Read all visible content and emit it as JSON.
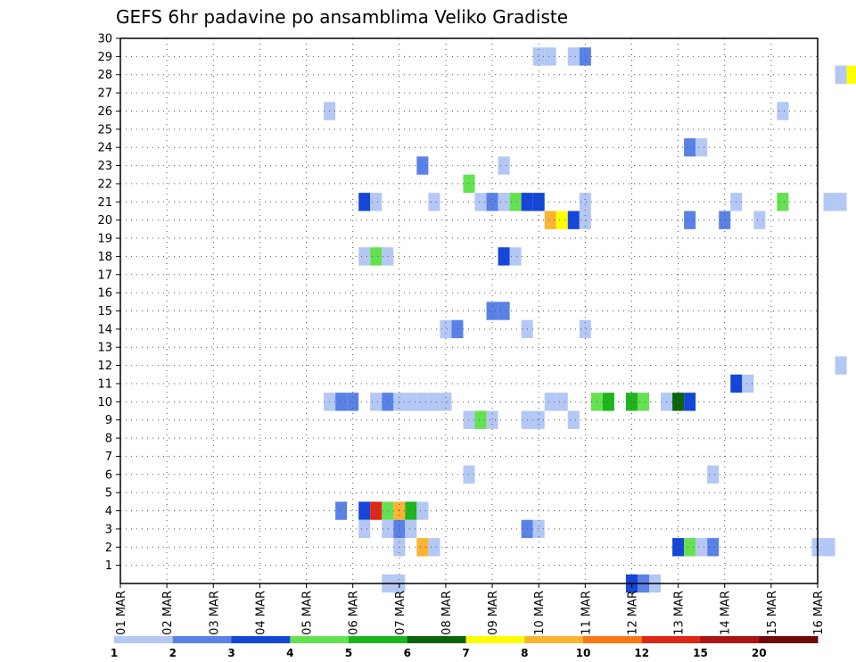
{
  "chart_data": {
    "type": "heatmap",
    "title": "GEFS 6hr padavine po ansamblima Veliko Gradiste",
    "xlabel": "",
    "ylabel": "",
    "x_tick_labels": [
      "01 MAR",
      "02 MAR",
      "03 MAR",
      "04 MAR",
      "05 MAR",
      "06 MAR",
      "07 MAR",
      "08 MAR",
      "09 MAR",
      "10 MAR",
      "11 MAR",
      "12 MAR",
      "13 MAR",
      "14 MAR",
      "15 MAR",
      "16 MAR"
    ],
    "x_range_days": [
      1,
      16
    ],
    "y_tick_labels": [
      "1",
      "2",
      "3",
      "4",
      "5",
      "6",
      "7",
      "8",
      "9",
      "10",
      "11",
      "12",
      "13",
      "14",
      "15",
      "16",
      "17",
      "18",
      "19",
      "20",
      "21",
      "22",
      "23",
      "24",
      "25",
      "26",
      "27",
      "28",
      "29",
      "30"
    ],
    "y_range": [
      0,
      30
    ],
    "grid": true,
    "colorbar": {
      "labels": [
        "1",
        "2",
        "3",
        "4",
        "5",
        "6",
        "7",
        "8",
        "10",
        "12",
        "15",
        "20"
      ],
      "colors": [
        "#b4c8f5",
        "#5a82e6",
        "#1446d7",
        "#64e150",
        "#1eb41e",
        "#0a640a",
        "#ffff00",
        "#fab432",
        "#fa7814",
        "#dc2814",
        "#aa1414",
        "#6e0a0a"
      ]
    },
    "cells": [
      {
        "day": 10.0,
        "member": 29,
        "level": 1
      },
      {
        "day": 10.25,
        "member": 29,
        "level": 1
      },
      {
        "day": 10.75,
        "member": 29,
        "level": 1
      },
      {
        "day": 11.0,
        "member": 29,
        "level": 2
      },
      {
        "day": 16.5,
        "member": 28,
        "level": 1
      },
      {
        "day": 16.75,
        "member": 28,
        "level": 7
      },
      {
        "day": 5.5,
        "member": 26,
        "level": 1
      },
      {
        "day": 15.25,
        "member": 26,
        "level": 1
      },
      {
        "day": 7.5,
        "member": 23,
        "level": 2
      },
      {
        "day": 9.25,
        "member": 23,
        "level": 1
      },
      {
        "day": 13.25,
        "member": 24,
        "level": 2
      },
      {
        "day": 13.5,
        "member": 24,
        "level": 1
      },
      {
        "day": 8.5,
        "member": 22,
        "level": 4
      },
      {
        "day": 6.25,
        "member": 21,
        "level": 3
      },
      {
        "day": 6.5,
        "member": 21,
        "level": 1
      },
      {
        "day": 7.75,
        "member": 21,
        "level": 1
      },
      {
        "day": 8.75,
        "member": 21,
        "level": 1
      },
      {
        "day": 9.0,
        "member": 21,
        "level": 2
      },
      {
        "day": 9.25,
        "member": 21,
        "level": 1
      },
      {
        "day": 9.5,
        "member": 21,
        "level": 4
      },
      {
        "day": 9.75,
        "member": 21,
        "level": 3
      },
      {
        "day": 10.0,
        "member": 21,
        "level": 3
      },
      {
        "day": 11.0,
        "member": 21,
        "level": 1
      },
      {
        "day": 14.25,
        "member": 21,
        "level": 1
      },
      {
        "day": 15.25,
        "member": 21,
        "level": 4
      },
      {
        "day": 16.25,
        "member": 21,
        "level": 1
      },
      {
        "day": 16.5,
        "member": 21,
        "level": 1
      },
      {
        "day": 10.25,
        "member": 20,
        "level": 8
      },
      {
        "day": 10.5,
        "member": 20,
        "level": 7
      },
      {
        "day": 10.75,
        "member": 20,
        "level": 3
      },
      {
        "day": 11.0,
        "member": 20,
        "level": 1
      },
      {
        "day": 13.25,
        "member": 20,
        "level": 2
      },
      {
        "day": 14.0,
        "member": 20,
        "level": 2
      },
      {
        "day": 14.75,
        "member": 20,
        "level": 1
      },
      {
        "day": 6.25,
        "member": 18,
        "level": 1
      },
      {
        "day": 6.5,
        "member": 18,
        "level": 4
      },
      {
        "day": 6.75,
        "member": 18,
        "level": 1
      },
      {
        "day": 9.25,
        "member": 18,
        "level": 3
      },
      {
        "day": 9.5,
        "member": 18,
        "level": 1
      },
      {
        "day": 9.0,
        "member": 15,
        "level": 2
      },
      {
        "day": 9.25,
        "member": 15,
        "level": 2
      },
      {
        "day": 8.0,
        "member": 14,
        "level": 1
      },
      {
        "day": 8.25,
        "member": 14,
        "level": 2
      },
      {
        "day": 9.75,
        "member": 14,
        "level": 1
      },
      {
        "day": 11.0,
        "member": 14,
        "level": 1
      },
      {
        "day": 16.5,
        "member": 12,
        "level": 1
      },
      {
        "day": 14.25,
        "member": 11,
        "level": 3
      },
      {
        "day": 14.5,
        "member": 11,
        "level": 1
      },
      {
        "day": 5.5,
        "member": 10,
        "level": 1
      },
      {
        "day": 5.75,
        "member": 10,
        "level": 2
      },
      {
        "day": 6.0,
        "member": 10,
        "level": 2
      },
      {
        "day": 6.5,
        "member": 10,
        "level": 1
      },
      {
        "day": 6.75,
        "member": 10,
        "level": 2
      },
      {
        "day": 7.0,
        "member": 10,
        "level": 1
      },
      {
        "day": 7.25,
        "member": 10,
        "level": 1
      },
      {
        "day": 7.5,
        "member": 10,
        "level": 1
      },
      {
        "day": 7.75,
        "member": 10,
        "level": 1
      },
      {
        "day": 8.0,
        "member": 10,
        "level": 1
      },
      {
        "day": 10.25,
        "member": 10,
        "level": 1
      },
      {
        "day": 10.5,
        "member": 10,
        "level": 1
      },
      {
        "day": 11.25,
        "member": 10,
        "level": 4
      },
      {
        "day": 11.5,
        "member": 10,
        "level": 5
      },
      {
        "day": 12.0,
        "member": 10,
        "level": 5
      },
      {
        "day": 12.25,
        "member": 10,
        "level": 4
      },
      {
        "day": 12.75,
        "member": 10,
        "level": 1
      },
      {
        "day": 13.0,
        "member": 10,
        "level": 6
      },
      {
        "day": 13.25,
        "member": 10,
        "level": 3
      },
      {
        "day": 8.5,
        "member": 9,
        "level": 1
      },
      {
        "day": 8.75,
        "member": 9,
        "level": 4
      },
      {
        "day": 9.0,
        "member": 9,
        "level": 1
      },
      {
        "day": 9.75,
        "member": 9,
        "level": 1
      },
      {
        "day": 10.0,
        "member": 9,
        "level": 1
      },
      {
        "day": 10.75,
        "member": 9,
        "level": 1
      },
      {
        "day": 8.5,
        "member": 6,
        "level": 1
      },
      {
        "day": 13.75,
        "member": 6,
        "level": 1
      },
      {
        "day": 5.75,
        "member": 4,
        "level": 2
      },
      {
        "day": 6.25,
        "member": 4,
        "level": 3
      },
      {
        "day": 6.5,
        "member": 4,
        "level": 10
      },
      {
        "day": 6.75,
        "member": 4,
        "level": 4
      },
      {
        "day": 7.0,
        "member": 4,
        "level": 8
      },
      {
        "day": 7.25,
        "member": 4,
        "level": 5
      },
      {
        "day": 7.5,
        "member": 4,
        "level": 1
      },
      {
        "day": 6.25,
        "member": 3,
        "level": 1
      },
      {
        "day": 6.75,
        "member": 3,
        "level": 1
      },
      {
        "day": 7.0,
        "member": 3,
        "level": 2
      },
      {
        "day": 7.25,
        "member": 3,
        "level": 1
      },
      {
        "day": 9.75,
        "member": 3,
        "level": 2
      },
      {
        "day": 10.0,
        "member": 3,
        "level": 1
      },
      {
        "day": 7.0,
        "member": 2,
        "level": 1
      },
      {
        "day": 7.5,
        "member": 2,
        "level": 8
      },
      {
        "day": 7.75,
        "member": 2,
        "level": 1
      },
      {
        "day": 13.0,
        "member": 2,
        "level": 3
      },
      {
        "day": 13.25,
        "member": 2,
        "level": 4
      },
      {
        "day": 13.5,
        "member": 2,
        "level": 1
      },
      {
        "day": 13.75,
        "member": 2,
        "level": 2
      },
      {
        "day": 16.0,
        "member": 2,
        "level": 1
      },
      {
        "day": 16.25,
        "member": 2,
        "level": 1
      },
      {
        "day": 6.75,
        "member": 0,
        "level": 1
      },
      {
        "day": 7.0,
        "member": 0,
        "level": 1
      },
      {
        "day": 12.0,
        "member": 0,
        "level": 3
      },
      {
        "day": 12.25,
        "member": 0,
        "level": 2
      },
      {
        "day": 12.5,
        "member": 0,
        "level": 1
      }
    ]
  }
}
